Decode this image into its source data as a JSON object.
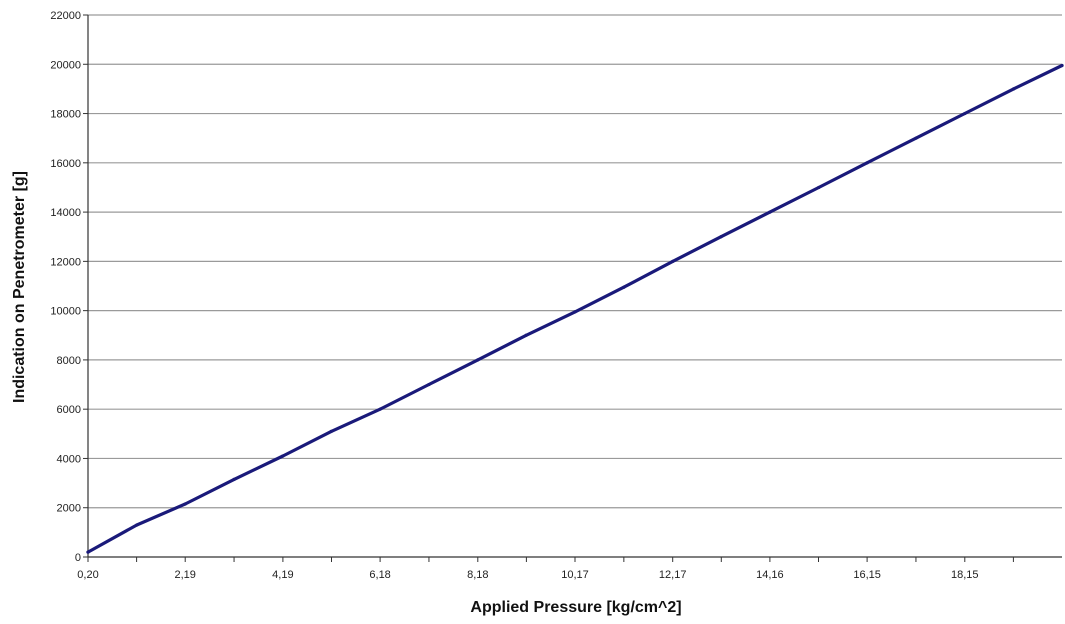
{
  "chart_data": {
    "type": "line",
    "title": "",
    "xlabel": "Applied Pressure [kg/cm^2]",
    "ylabel": "Indication on Penetrometer [g]",
    "xlim": [
      0.2,
      20.14
    ],
    "ylim": [
      0,
      22000
    ],
    "grid": "horizontal",
    "legend": "none",
    "line_color": "#1a1a7a",
    "grid_color": "#9a9a9a",
    "y_ticks": [
      0,
      2000,
      4000,
      6000,
      8000,
      10000,
      12000,
      14000,
      16000,
      18000,
      20000,
      22000
    ],
    "x_ticks": [
      {
        "value": 0.2,
        "label": "0,20"
      },
      {
        "value": 2.19,
        "label": "2,19"
      },
      {
        "value": 4.19,
        "label": "4,19"
      },
      {
        "value": 6.18,
        "label": "6,18"
      },
      {
        "value": 8.18,
        "label": "8,18"
      },
      {
        "value": 10.17,
        "label": "10,17"
      },
      {
        "value": 12.17,
        "label": "12,17"
      },
      {
        "value": 14.16,
        "label": "14,16"
      },
      {
        "value": 16.15,
        "label": "16,15"
      },
      {
        "value": 18.15,
        "label": "18,15"
      }
    ],
    "series": [
      {
        "x": [
          0.2,
          1.2,
          2.19,
          3.19,
          4.19,
          5.18,
          6.18,
          7.18,
          8.18,
          9.17,
          10.17,
          11.17,
          12.17,
          13.16,
          14.16,
          15.16,
          16.15,
          17.15,
          18.15,
          19.15,
          20.14
        ],
        "values": [
          200,
          1300,
          2150,
          3150,
          4100,
          5100,
          6000,
          7000,
          8000,
          9000,
          9950,
          10950,
          12000,
          13000,
          14000,
          15000,
          16000,
          17000,
          18000,
          19000,
          19950
        ]
      }
    ]
  }
}
